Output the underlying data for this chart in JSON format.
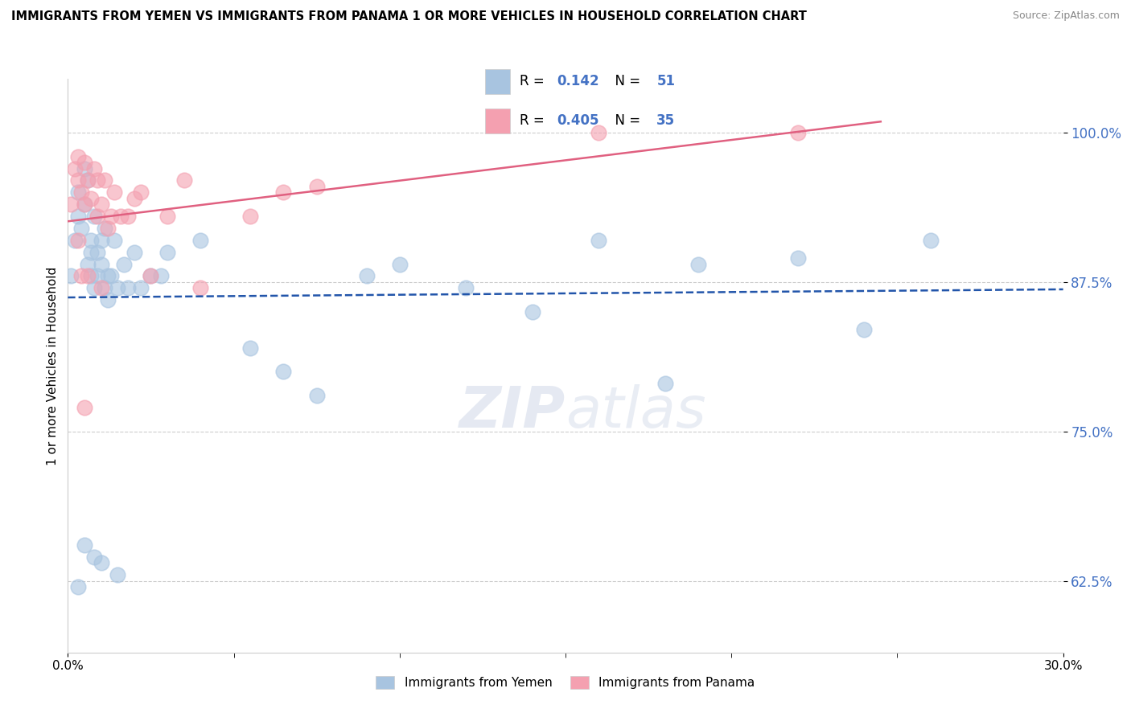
{
  "title": "IMMIGRANTS FROM YEMEN VS IMMIGRANTS FROM PANAMA 1 OR MORE VEHICLES IN HOUSEHOLD CORRELATION CHART",
  "source": "Source: ZipAtlas.com",
  "ylabel": "1 or more Vehicles in Household",
  "ytick_labels": [
    "62.5%",
    "75.0%",
    "87.5%",
    "100.0%"
  ],
  "ytick_values": [
    0.625,
    0.75,
    0.875,
    1.0
  ],
  "xlim": [
    0.0,
    0.3
  ],
  "ylim": [
    0.565,
    1.045
  ],
  "legend_label1": "Immigrants from Yemen",
  "legend_label2": "Immigrants from Panama",
  "r1": "0.142",
  "n1": "51",
  "r2": "0.405",
  "n2": "35",
  "color_yemen": "#a8c4e0",
  "color_panama": "#f4a0b0",
  "trendline_color_yemen": "#2255aa",
  "trendline_color_panama": "#e06080",
  "watermark_zip": "ZIP",
  "watermark_atlas": "atlas",
  "yemen_x": [
    0.001,
    0.002,
    0.003,
    0.003,
    0.004,
    0.005,
    0.005,
    0.006,
    0.006,
    0.007,
    0.007,
    0.007,
    0.008,
    0.008,
    0.009,
    0.009,
    0.01,
    0.01,
    0.011,
    0.011,
    0.012,
    0.012,
    0.013,
    0.014,
    0.015,
    0.017,
    0.018,
    0.02,
    0.022,
    0.025,
    0.028,
    0.03,
    0.04,
    0.055,
    0.065,
    0.075,
    0.09,
    0.1,
    0.12,
    0.14,
    0.16,
    0.18,
    0.19,
    0.22,
    0.24,
    0.26,
    0.01,
    0.015,
    0.008,
    0.005,
    0.003
  ],
  "yemen_y": [
    0.88,
    0.91,
    0.95,
    0.93,
    0.92,
    0.97,
    0.94,
    0.96,
    0.89,
    0.91,
    0.88,
    0.9,
    0.93,
    0.87,
    0.9,
    0.88,
    0.91,
    0.89,
    0.87,
    0.92,
    0.88,
    0.86,
    0.88,
    0.91,
    0.87,
    0.89,
    0.87,
    0.9,
    0.87,
    0.88,
    0.88,
    0.9,
    0.91,
    0.82,
    0.8,
    0.78,
    0.88,
    0.89,
    0.87,
    0.85,
    0.91,
    0.79,
    0.89,
    0.895,
    0.835,
    0.91,
    0.64,
    0.63,
    0.645,
    0.655,
    0.62
  ],
  "panama_x": [
    0.001,
    0.002,
    0.003,
    0.003,
    0.004,
    0.005,
    0.005,
    0.006,
    0.007,
    0.008,
    0.009,
    0.009,
    0.01,
    0.011,
    0.012,
    0.013,
    0.014,
    0.016,
    0.018,
    0.02,
    0.022,
    0.025,
    0.03,
    0.035,
    0.04,
    0.055,
    0.065,
    0.075,
    0.16,
    0.22,
    0.003,
    0.004,
    0.005,
    0.006,
    0.01
  ],
  "panama_y": [
    0.94,
    0.97,
    0.98,
    0.96,
    0.95,
    0.94,
    0.975,
    0.96,
    0.945,
    0.97,
    0.96,
    0.93,
    0.94,
    0.96,
    0.92,
    0.93,
    0.95,
    0.93,
    0.93,
    0.945,
    0.95,
    0.88,
    0.93,
    0.96,
    0.87,
    0.93,
    0.95,
    0.955,
    1.0,
    1.0,
    0.91,
    0.88,
    0.77,
    0.88,
    0.87
  ]
}
